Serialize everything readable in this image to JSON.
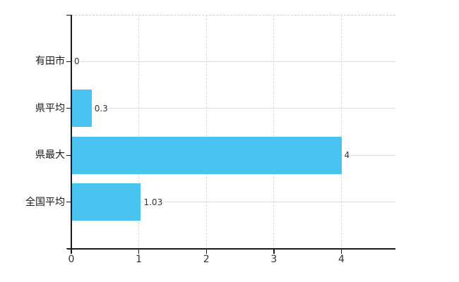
{
  "chart_data": {
    "type": "bar",
    "orientation": "horizontal",
    "title": "",
    "xlabel": "",
    "ylabel": "",
    "categories": [
      "有田市",
      "県平均",
      "県最大",
      "全国平均"
    ],
    "values": [
      0,
      0.3,
      4,
      1.03
    ],
    "value_labels": [
      "0",
      "0.3",
      "4",
      "1.03"
    ],
    "x_ticks": [
      0,
      1,
      2,
      3,
      4
    ],
    "x_tick_labels": [
      "0",
      "1",
      "2",
      "3",
      "4"
    ],
    "xlim": [
      0,
      4.8
    ],
    "grid": true,
    "legend_position": "none",
    "bar_color": "#4ac3f0",
    "horizontal_grid_color": "#d6ded6",
    "vertical_grid_color": "#dedede",
    "axis_color": "#1a1a1a"
  }
}
